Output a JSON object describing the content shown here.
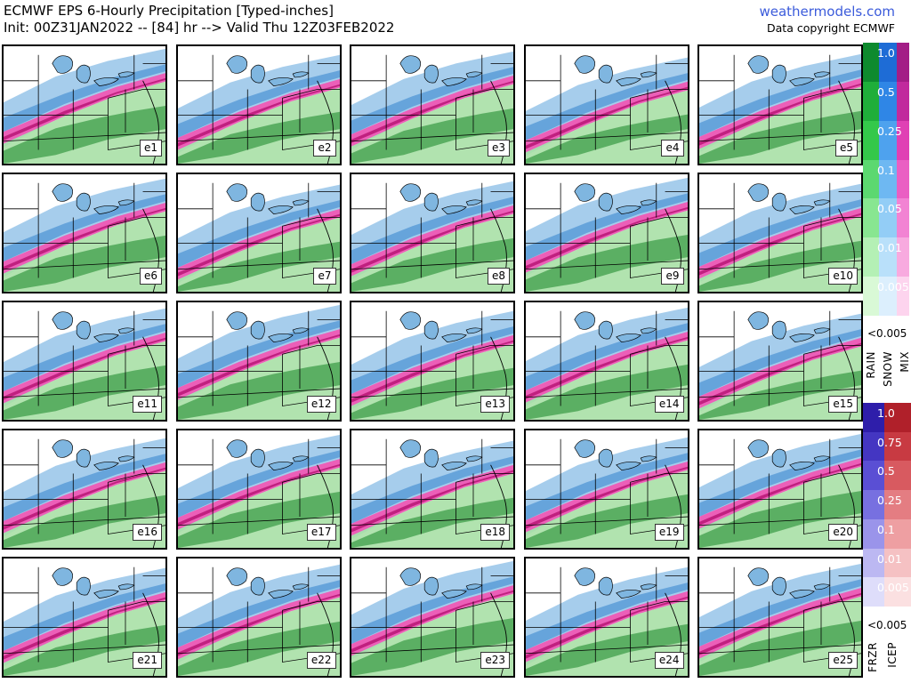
{
  "header": {
    "title": "ECMWF EPS 6-Hourly Precipitation [Typed-inches]",
    "subtitle": "Init: 00Z31JAN2022 -- [84] hr --> Valid Thu 12Z03FEB2022",
    "brand": "weathermodels.com",
    "copyright": "Data copyright ECMWF"
  },
  "members": [
    "e1",
    "e2",
    "e3",
    "e4",
    "e5",
    "e6",
    "e7",
    "e8",
    "e9",
    "e10",
    "e11",
    "e12",
    "e13",
    "e14",
    "e15",
    "e16",
    "e17",
    "e18",
    "e19",
    "e20",
    "e21",
    "e22",
    "e23",
    "e24",
    "e25"
  ],
  "legend_top": {
    "levels": [
      "1.0",
      "0.5",
      "0.25",
      "0.1",
      "0.05",
      "0.01",
      "0.005"
    ],
    "below_label": "<0.005",
    "type_labels": [
      "RAIN",
      "SNOW",
      "MIX"
    ],
    "colors": {
      "rain": [
        "#0e8a2e",
        "#1fae3a",
        "#34c84a",
        "#5cd870",
        "#88e691",
        "#b4f0b5",
        "#d9f9d6"
      ],
      "snow": [
        "#1e6cd6",
        "#2f86e6",
        "#4ea2ee",
        "#6eb8f2",
        "#93cdf6",
        "#b9e0fa",
        "#dceffd"
      ],
      "mix": [
        "#a31d86",
        "#c12a9d",
        "#e040b4",
        "#ea5fc3",
        "#f283d3",
        "#f8aadf",
        "#fdd4ee"
      ]
    }
  },
  "legend_bottom": {
    "levels": [
      "1.0",
      "0.75",
      "0.5",
      "0.25",
      "0.1",
      "0.01",
      "0.005"
    ],
    "below_label": "<0.005",
    "type_labels": [
      "FRZR",
      "ICEP"
    ],
    "colors": {
      "frzr": [
        "#2e1eaa",
        "#4436c2",
        "#5a4fd4",
        "#7770e0",
        "#9a94ea",
        "#bcb8f2",
        "#deddfa"
      ],
      "icep": [
        "#b0202a",
        "#c83a42",
        "#d85a60",
        "#e47d82",
        "#ee9fa2",
        "#f5c1c3",
        "#fbe0e1"
      ]
    }
  }
}
